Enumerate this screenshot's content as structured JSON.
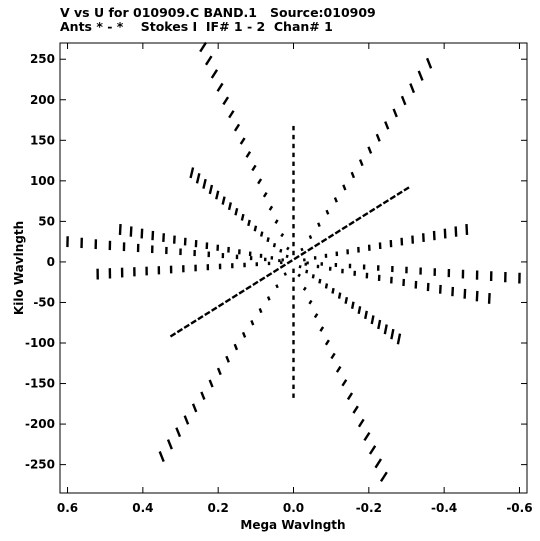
{
  "chart_data": {
    "type": "scatter",
    "title": "V vs U for 010909.C BAND.1   Source:010909",
    "subtitle": "Ants * - *    Stokes I  IF# 1 - 2  Chan# 1",
    "xlabel": "Mega Wavlngth",
    "ylabel": "Kilo Wavlngth",
    "xlim": [
      0.62,
      -0.62
    ],
    "ylim": [
      -285,
      270
    ],
    "xticks": [
      0.6,
      0.4,
      0.2,
      0.0,
      -0.2,
      -0.4,
      -0.6
    ],
    "xtick_labels": [
      "0.6",
      "0.4",
      "0.2",
      "0.0",
      "-0.2",
      "-0.4",
      "-0.6"
    ],
    "yticks": [
      250,
      200,
      150,
      100,
      50,
      0,
      -50,
      -100,
      -150,
      -200,
      -250
    ],
    "ytick_labels": [
      "250",
      "200",
      "150",
      "100",
      "50",
      "0",
      "-50",
      "-100",
      "-150",
      "-200",
      "-250"
    ],
    "grid": false,
    "marker_color": "#000000",
    "arms": [
      {
        "u": 0.24,
        "v": 265
      },
      {
        "u": -0.24,
        "v": -265
      },
      {
        "u": -0.36,
        "v": 245
      },
      {
        "u": 0.35,
        "v": -240
      },
      {
        "u": 0.6,
        "v": 25
      },
      {
        "u": -0.6,
        "v": -20
      },
      {
        "u": 0.27,
        "v": 110
      },
      {
        "u": -0.28,
        "v": -95
      },
      {
        "u": -0.46,
        "v": 40
      },
      {
        "u": 0.52,
        "v": -15
      },
      {
        "u": -0.52,
        "v": -45
      },
      {
        "u": 0.46,
        "v": 40
      }
    ],
    "diagonal_band": {
      "u_from": 0.32,
      "v_from": -90,
      "u_to": -0.3,
      "v_to": 90
    }
  }
}
